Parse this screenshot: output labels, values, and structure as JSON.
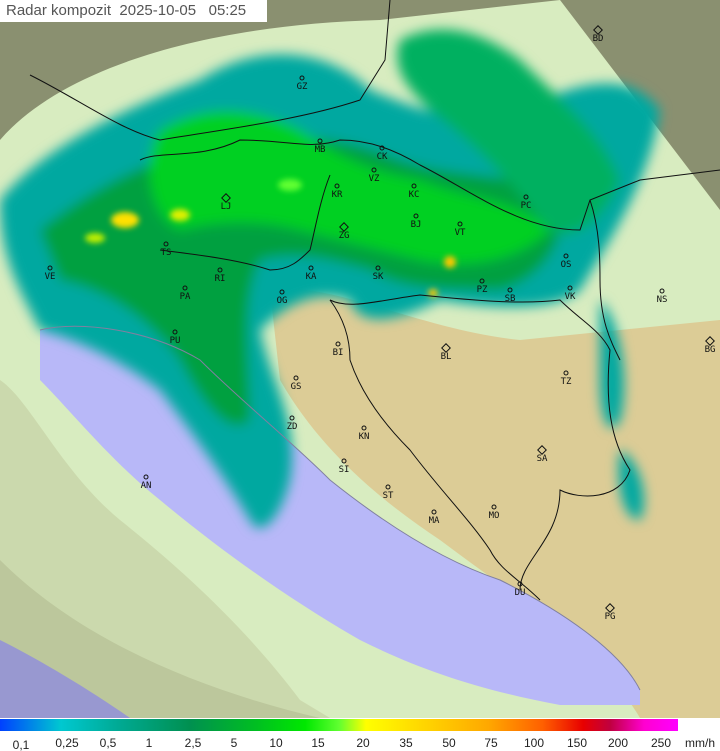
{
  "header": {
    "title": "Radar kompozit  2025-10-05   05:25"
  },
  "legend": {
    "unit": "mm/h",
    "labels": [
      "0,1",
      "0,25",
      "0,5",
      "1",
      "2,5",
      "5",
      "10",
      "15",
      "20",
      "35",
      "50",
      "75",
      "100",
      "150",
      "200",
      "250"
    ],
    "colors": {
      "low": "#0040ff",
      "mid": "#00e800",
      "high": "#ffff00",
      "very_high": "#e80000",
      "max": "#ff00ff"
    }
  },
  "map": {
    "colors": {
      "sea": "#b8b8f8",
      "coverage": "#d8ecc0",
      "terrain": "#d8c890",
      "outside": "#8a9070"
    },
    "cities": [
      {
        "code": "BD",
        "marker": "diamond"
      },
      {
        "code": "GZ",
        "marker": "dot"
      },
      {
        "code": "MB",
        "marker": "dot"
      },
      {
        "code": "CK",
        "marker": "dot"
      },
      {
        "code": "VZ",
        "marker": "dot"
      },
      {
        "code": "KR",
        "marker": "dot"
      },
      {
        "code": "KC",
        "marker": "dot"
      },
      {
        "code": "LJ",
        "marker": "diamond"
      },
      {
        "code": "ZG",
        "marker": "diamond"
      },
      {
        "code": "BJ",
        "marker": "dot"
      },
      {
        "code": "VT",
        "marker": "dot"
      },
      {
        "code": "PC",
        "marker": "dot"
      },
      {
        "code": "TS",
        "marker": "dot"
      },
      {
        "code": "VE",
        "marker": "dot"
      },
      {
        "code": "RI",
        "marker": "dot"
      },
      {
        "code": "KA",
        "marker": "dot"
      },
      {
        "code": "SK",
        "marker": "dot"
      },
      {
        "code": "OS",
        "marker": "dot"
      },
      {
        "code": "PA",
        "marker": "dot"
      },
      {
        "code": "OG",
        "marker": "dot"
      },
      {
        "code": "PZ",
        "marker": "dot"
      },
      {
        "code": "SB",
        "marker": "dot"
      },
      {
        "code": "VK",
        "marker": "dot"
      },
      {
        "code": "NS",
        "marker": "dot"
      },
      {
        "code": "PU",
        "marker": "dot"
      },
      {
        "code": "BI",
        "marker": "dot"
      },
      {
        "code": "BL",
        "marker": "diamond"
      },
      {
        "code": "BG",
        "marker": "diamond"
      },
      {
        "code": "TZ",
        "marker": "dot"
      },
      {
        "code": "GS",
        "marker": "dot"
      },
      {
        "code": "ZD",
        "marker": "dot"
      },
      {
        "code": "KN",
        "marker": "dot"
      },
      {
        "code": "SA",
        "marker": "diamond"
      },
      {
        "code": "SI",
        "marker": "dot"
      },
      {
        "code": "AN",
        "marker": "dot"
      },
      {
        "code": "ST",
        "marker": "dot"
      },
      {
        "code": "MA",
        "marker": "dot"
      },
      {
        "code": "MO",
        "marker": "dot"
      },
      {
        "code": "DU",
        "marker": "dot"
      },
      {
        "code": "PG",
        "marker": "diamond"
      }
    ]
  }
}
